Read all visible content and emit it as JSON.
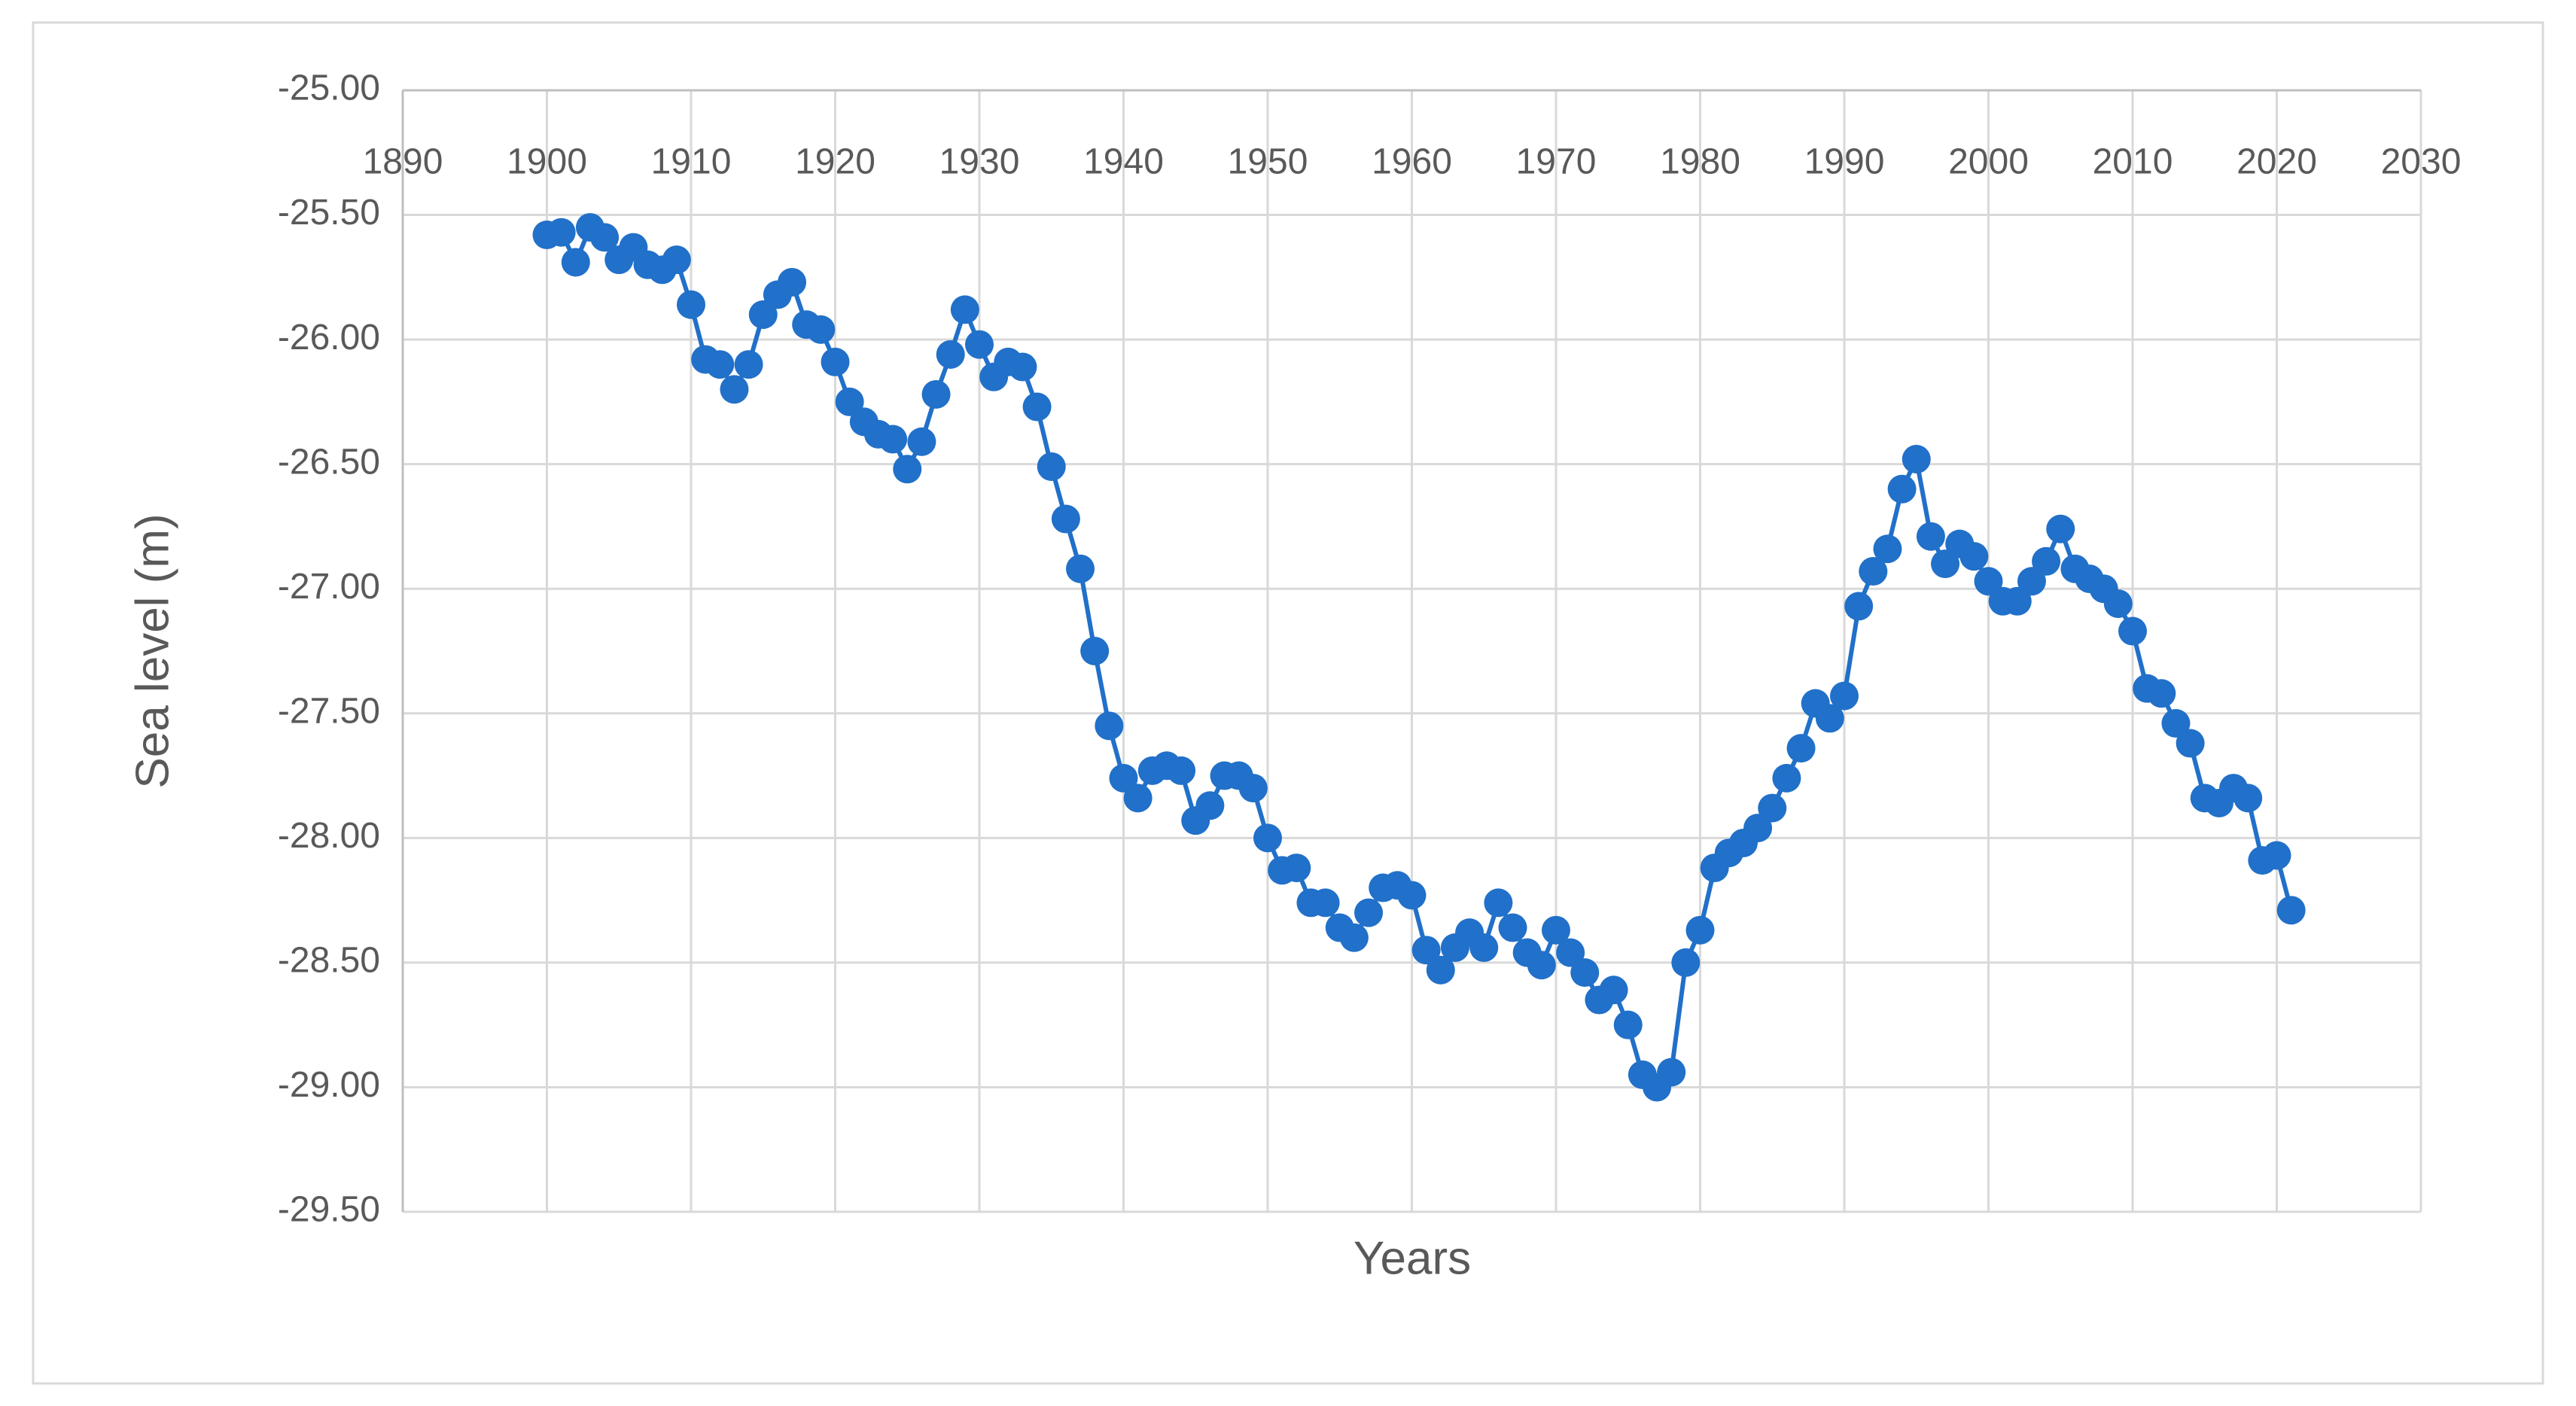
{
  "chart_data": {
    "type": "line",
    "x_label": "Years",
    "y_label": "Sea level (m)",
    "x": [
      1900,
      1901,
      1902,
      1903,
      1904,
      1905,
      1906,
      1907,
      1908,
      1909,
      1910,
      1911,
      1912,
      1913,
      1914,
      1915,
      1916,
      1917,
      1918,
      1919,
      1920,
      1921,
      1922,
      1923,
      1924,
      1925,
      1926,
      1927,
      1928,
      1929,
      1930,
      1931,
      1932,
      1933,
      1934,
      1935,
      1936,
      1937,
      1938,
      1939,
      1940,
      1941,
      1942,
      1943,
      1944,
      1945,
      1946,
      1947,
      1948,
      1949,
      1950,
      1951,
      1952,
      1953,
      1954,
      1955,
      1956,
      1957,
      1958,
      1959,
      1960,
      1961,
      1962,
      1963,
      1964,
      1965,
      1966,
      1967,
      1968,
      1969,
      1970,
      1971,
      1972,
      1973,
      1974,
      1975,
      1976,
      1977,
      1978,
      1979,
      1980,
      1981,
      1982,
      1983,
      1984,
      1985,
      1986,
      1987,
      1988,
      1989,
      1990,
      1991,
      1992,
      1993,
      1994,
      1995,
      1996,
      1997,
      1998,
      1999,
      2000,
      2001,
      2002,
      2003,
      2004,
      2005,
      2006,
      2007,
      2008,
      2009,
      2010,
      2011,
      2012,
      2013,
      2014,
      2015,
      2016,
      2017,
      2018,
      2019,
      2020,
      2021
    ],
    "series": [
      {
        "color": "#2170c9",
        "values": [
          -25.58,
          -25.57,
          -25.69,
          -25.55,
          -25.59,
          -25.68,
          -25.63,
          -25.7,
          -25.72,
          -25.68,
          -25.86,
          -26.08,
          -26.1,
          -26.2,
          -26.1,
          -25.9,
          -25.82,
          -25.77,
          -25.94,
          -25.96,
          -26.09,
          -26.25,
          -26.33,
          -26.38,
          -26.4,
          -26.52,
          -26.41,
          -26.22,
          -26.06,
          -25.88,
          -26.02,
          -26.15,
          -26.09,
          -26.11,
          -26.27,
          -26.51,
          -26.72,
          -26.92,
          -27.25,
          -27.55,
          -27.76,
          -27.84,
          -27.73,
          -27.71,
          -27.73,
          -27.93,
          -27.87,
          -27.75,
          -27.75,
          -27.8,
          -28.0,
          -28.13,
          -28.12,
          -28.26,
          -28.26,
          -28.36,
          -28.4,
          -28.3,
          -28.2,
          -28.19,
          -28.23,
          -28.45,
          -28.53,
          -28.44,
          -28.38,
          -28.44,
          -28.26,
          -28.36,
          -28.46,
          -28.51,
          -28.37,
          -28.46,
          -28.54,
          -28.65,
          -28.61,
          -28.75,
          -28.95,
          -29.0,
          -28.94,
          -28.5,
          -28.37,
          -28.12,
          -28.06,
          -28.02,
          -27.96,
          -27.88,
          -27.76,
          -27.64,
          -27.46,
          -27.52,
          -27.43,
          -27.07,
          -26.93,
          -26.84,
          -26.6,
          -26.48,
          -26.79,
          -26.9,
          -26.82,
          -26.87,
          -26.97,
          -27.05,
          -27.05,
          -26.97,
          -26.89,
          -26.76,
          -26.92,
          -26.96,
          -27.0,
          -27.06,
          -27.17,
          -27.4,
          -27.42,
          -27.54,
          -27.62,
          -27.84,
          -27.86,
          -27.8,
          -27.84,
          -28.09,
          -28.07,
          -28.29
        ]
      }
    ],
    "xlim": [
      1890,
      2030
    ],
    "xticks": [
      1890,
      1900,
      1910,
      1920,
      1930,
      1940,
      1950,
      1960,
      1970,
      1980,
      1990,
      2000,
      2010,
      2020,
      2030
    ],
    "ylim": [
      -29.5,
      -25.0
    ],
    "yticks": [
      {
        "value": -25.0,
        "label": "-25.00"
      },
      {
        "value": -25.5,
        "label": "-25.50"
      },
      {
        "value": -26.0,
        "label": "-26.00"
      },
      {
        "value": -26.5,
        "label": "-26.50"
      },
      {
        "value": -27.0,
        "label": "-27.00"
      },
      {
        "value": -27.5,
        "label": "-27.50"
      },
      {
        "value": -28.0,
        "label": "-28.00"
      },
      {
        "value": -28.5,
        "label": "-28.50"
      },
      {
        "value": -29.0,
        "label": "-29.00"
      },
      {
        "value": -29.5,
        "label": "-29.50"
      }
    ],
    "grid": true,
    "markers": true
  }
}
